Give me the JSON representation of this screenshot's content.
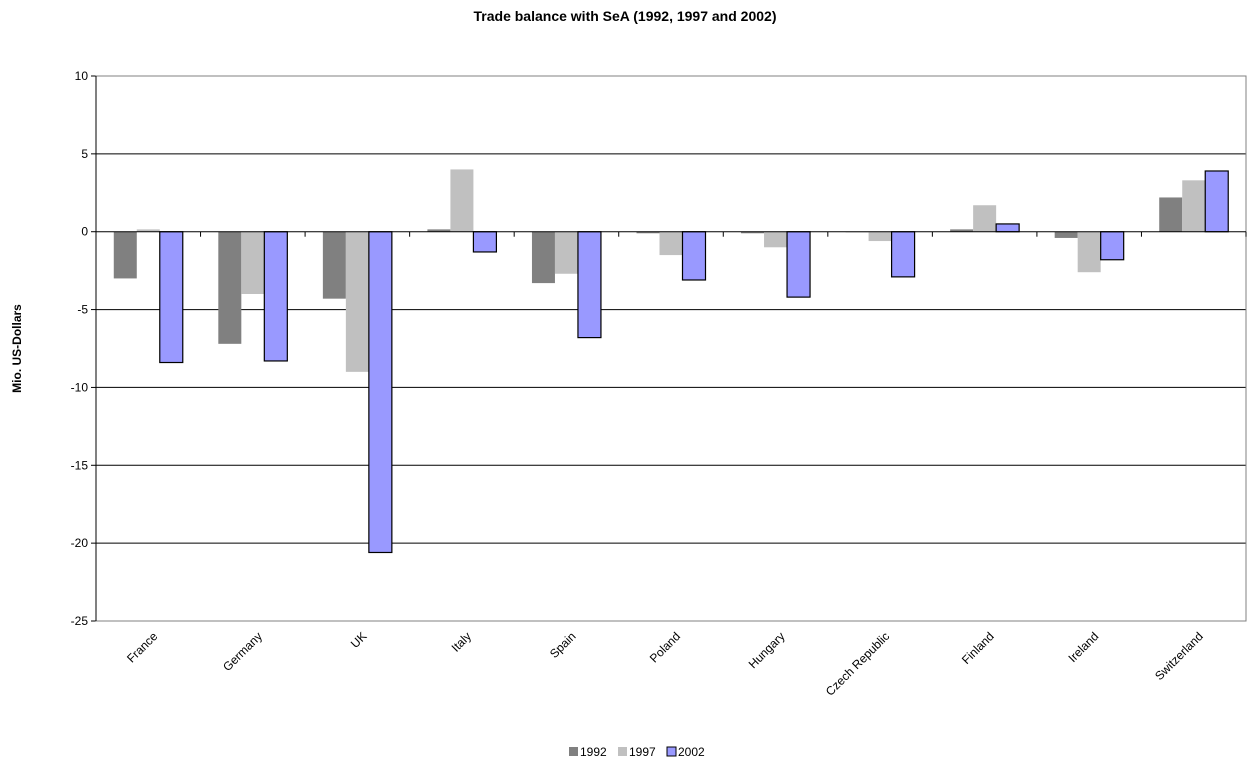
{
  "chart_data": {
    "type": "bar",
    "title": "Trade balance with SeA (1992, 1997 and 2002)",
    "xlabel": "",
    "ylabel": "Mio. US-Dollars",
    "ylim": [
      -25,
      10
    ],
    "yticks": [
      10,
      5,
      0,
      -5,
      -10,
      -15,
      -20,
      -25
    ],
    "grid": true,
    "legend_position": "bottom",
    "categories": [
      "France",
      "Germany",
      "UK",
      "Italy",
      "Spain",
      "Poland",
      "Hungary",
      "Czech Republic",
      "Finland",
      "Ireland",
      "Switzerland"
    ],
    "series": [
      {
        "name": "1992",
        "color": "#808080",
        "values": [
          -3.0,
          -7.2,
          -4.3,
          0.15,
          -3.3,
          -0.1,
          -0.1,
          0.0,
          0.15,
          -0.4,
          2.2
        ]
      },
      {
        "name": "1997",
        "color": "#c0c0c0",
        "values": [
          0.15,
          -4.0,
          -9.0,
          4.0,
          -2.7,
          -1.5,
          -1.0,
          -0.6,
          1.7,
          -2.6,
          3.3
        ]
      },
      {
        "name": "2002",
        "color": "#9999ff",
        "values": [
          -8.4,
          -8.3,
          -20.6,
          -1.3,
          -6.8,
          -3.1,
          -4.2,
          -2.9,
          0.5,
          -1.8,
          3.9
        ]
      }
    ]
  }
}
